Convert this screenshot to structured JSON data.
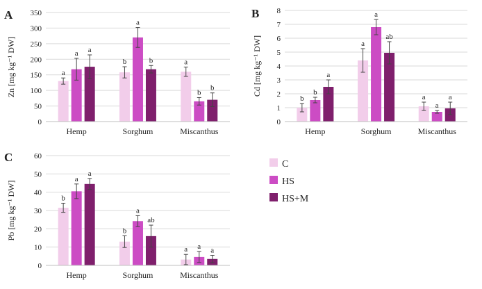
{
  "legend": [
    {
      "key": "C",
      "label": "C",
      "color": "#f2cdea"
    },
    {
      "key": "HS",
      "label": "HS",
      "color": "#cc4cc4"
    },
    {
      "key": "HSM",
      "label": "HS+M",
      "color": "#7f1f6c"
    }
  ],
  "chart_data": [
    {
      "type": "bar",
      "panel_label": "A",
      "ylabel": "Zn [mg kg⁻¹ DW]",
      "categories": [
        "Hemp",
        "Sorghum",
        "Miscanthus"
      ],
      "ylim": [
        0,
        350
      ],
      "yticks": [
        0,
        50,
        100,
        150,
        200,
        250,
        300,
        350
      ],
      "grid": true,
      "series": [
        {
          "name": "C",
          "values": [
            130,
            158,
            160
          ],
          "errors": [
            10,
            18,
            15
          ],
          "letters": [
            "a",
            "b",
            "a"
          ]
        },
        {
          "name": "HS",
          "values": [
            168,
            270,
            65
          ],
          "errors": [
            35,
            32,
            12
          ],
          "letters": [
            "a",
            "a",
            "b"
          ]
        },
        {
          "name": "HS+M",
          "values": [
            176,
            168,
            70
          ],
          "errors": [
            38,
            12,
            22
          ],
          "letters": [
            "a",
            "b",
            "b"
          ]
        }
      ]
    },
    {
      "type": "bar",
      "panel_label": "B",
      "ylabel": "Cd [mg kg⁻¹ DW]",
      "categories": [
        "Hemp",
        "Sorghum",
        "Miscanthus"
      ],
      "ylim": [
        0,
        8
      ],
      "yticks": [
        0,
        1,
        2,
        3,
        4,
        5,
        6,
        7,
        8
      ],
      "grid": true,
      "series": [
        {
          "name": "C",
          "values": [
            1.0,
            4.4,
            1.1
          ],
          "errors": [
            0.3,
            0.85,
            0.3
          ],
          "letters": [
            "b",
            "a",
            "a"
          ]
        },
        {
          "name": "HS",
          "values": [
            1.55,
            6.8,
            0.7
          ],
          "errors": [
            0.2,
            0.55,
            0.1
          ],
          "letters": [
            "b",
            "a",
            "a"
          ]
        },
        {
          "name": "HS+M",
          "values": [
            2.5,
            4.95,
            0.95
          ],
          "errors": [
            0.5,
            0.8,
            0.45
          ],
          "letters": [
            "a",
            "ab",
            "a"
          ]
        }
      ]
    },
    {
      "type": "bar",
      "panel_label": "C",
      "ylabel": "Pb [mg kg⁻¹ DW]",
      "categories": [
        "Hemp",
        "Sorghum",
        "Miscanthus"
      ],
      "ylim": [
        0,
        60
      ],
      "yticks": [
        0,
        10,
        20,
        30,
        40,
        50,
        60
      ],
      "grid": true,
      "series": [
        {
          "name": "C",
          "values": [
            31.5,
            13,
            3.2
          ],
          "errors": [
            2.5,
            3.2,
            2.8
          ],
          "letters": [
            "b",
            "b",
            "a"
          ]
        },
        {
          "name": "HS",
          "values": [
            40.5,
            24.2,
            4.6
          ],
          "errors": [
            4.0,
            3.0,
            3.0
          ],
          "letters": [
            "a",
            "a",
            "a"
          ]
        },
        {
          "name": "HS+M",
          "values": [
            44.5,
            16,
            3.5
          ],
          "errors": [
            3.0,
            6.0,
            2.0
          ],
          "letters": [
            "a",
            "ab",
            "a"
          ]
        }
      ]
    }
  ]
}
